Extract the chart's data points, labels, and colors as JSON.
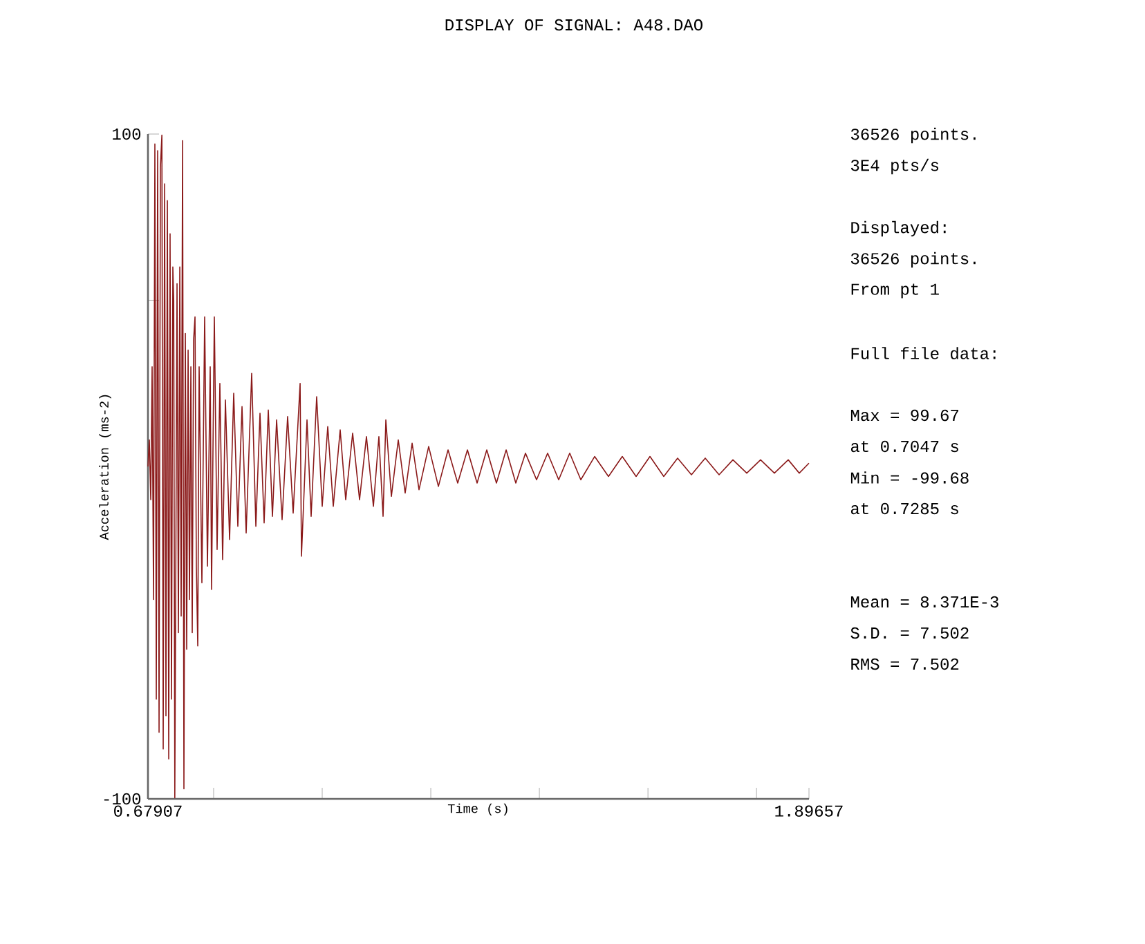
{
  "chart_data": {
    "type": "line",
    "title": "DISPLAY OF SIGNAL: A48.DAO",
    "xlabel": "Time (s)",
    "ylabel": "Acceleration (ms-2)",
    "xlim": [
      0.67907,
      1.89657
    ],
    "ylim": [
      -100,
      100
    ],
    "xticks": [
      0.67907,
      {
        "value": 0.8,
        "label": null
      },
      {
        "value": 1.0,
        "label": null
      },
      {
        "value": 1.2,
        "label": null
      },
      {
        "value": 1.4,
        "label": null
      },
      {
        "value": 1.6,
        "label": null
      },
      {
        "value": 1.8,
        "label": null
      },
      1.89657
    ],
    "yticks": [
      -100,
      {
        "value": 50,
        "label": null
      },
      100
    ],
    "grid": false,
    "annotations": [
      "36526 points.",
      "3E4 pts/s",
      "Displayed:",
      "36526 points.",
      "From pt 1",
      "Full file data:",
      "Max = 99.67",
      "at 0.7047 s",
      "Min = -99.68",
      "at 0.7285 s",
      "Mean = 8.371E-3",
      "S.D. = 7.502",
      "RMS = 7.502"
    ],
    "series": [
      {
        "color": "#8b1a1a",
        "x": [
          0.6791,
          0.6816,
          0.6842,
          0.6867,
          0.6893,
          0.6918,
          0.6944,
          0.6969,
          0.6995,
          0.702,
          0.7047,
          0.7071,
          0.7097,
          0.7122,
          0.7148,
          0.7173,
          0.7198,
          0.7224,
          0.7249,
          0.7265,
          0.7285,
          0.7326,
          0.7351,
          0.7377,
          0.7402,
          0.7428,
          0.7453,
          0.7479,
          0.7504,
          0.753,
          0.7555,
          0.7581,
          0.7606,
          0.7631,
          0.7657,
          0.7682,
          0.7708,
          0.7733,
          0.7784,
          0.7835,
          0.7886,
          0.7937,
          0.7962,
          0.8013,
          0.8064,
          0.8115,
          0.8166,
          0.8217,
          0.8294,
          0.837,
          0.8446,
          0.8523,
          0.8599,
          0.8701,
          0.8778,
          0.8854,
          0.893,
          0.9007,
          0.9083,
          0.916,
          0.9261,
          0.9363,
          0.9465,
          0.9593,
          0.9618,
          0.972,
          0.9796,
          0.9898,
          1.0,
          1.0102,
          1.0204,
          1.0331,
          1.0433,
          1.0561,
          1.0688,
          1.0815,
          1.0943,
          1.1044,
          1.1121,
          1.1172,
          1.1274,
          1.1401,
          1.1528,
          1.1656,
          1.1783,
          1.1961,
          1.214,
          1.2318,
          1.2496,
          1.2675,
          1.2853,
          1.3031,
          1.3209,
          1.3388,
          1.3566,
          1.3744,
          1.3948,
          1.4152,
          1.4356,
          1.4559,
          1.4763,
          1.5018,
          1.5273,
          1.5527,
          1.5782,
          1.6037,
          1.6291,
          1.6546,
          1.6801,
          1.7055,
          1.731,
          1.7565,
          1.782,
          1.8074,
          1.8329,
          1.8584,
          1.8787,
          1.8965
        ],
        "values": [
          0,
          8,
          -10,
          30,
          -40,
          97,
          -70,
          95,
          -80,
          90,
          99.67,
          -85,
          85,
          -75,
          80,
          -88,
          70,
          -70,
          60,
          50,
          -99.68,
          55,
          -50,
          60,
          -45,
          98,
          -97,
          40,
          -55,
          35,
          -40,
          30,
          -50,
          38,
          45,
          -30,
          -54,
          30,
          -35,
          45,
          -30,
          30,
          -37,
          45,
          -25,
          25,
          -28,
          20,
          -22,
          22,
          -18,
          18,
          -20,
          28,
          -18,
          16,
          -17,
          17,
          -15,
          14,
          -16,
          15,
          -14,
          25,
          -27,
          14,
          -15,
          21,
          -12,
          12,
          -12,
          11,
          -10,
          10,
          -10,
          9,
          -12,
          9,
          -15,
          14,
          -9,
          8,
          -8,
          7,
          -7,
          6,
          -6,
          5,
          -5,
          5,
          -5,
          5,
          -5,
          5,
          -5,
          4,
          -4,
          4,
          -4,
          4,
          -4,
          3,
          -3,
          3,
          -3,
          3,
          -3,
          2.5,
          -2.5,
          2.5,
          -2.5,
          2,
          -2,
          2,
          -2,
          2,
          -2,
          1
        ]
      }
    ]
  }
}
